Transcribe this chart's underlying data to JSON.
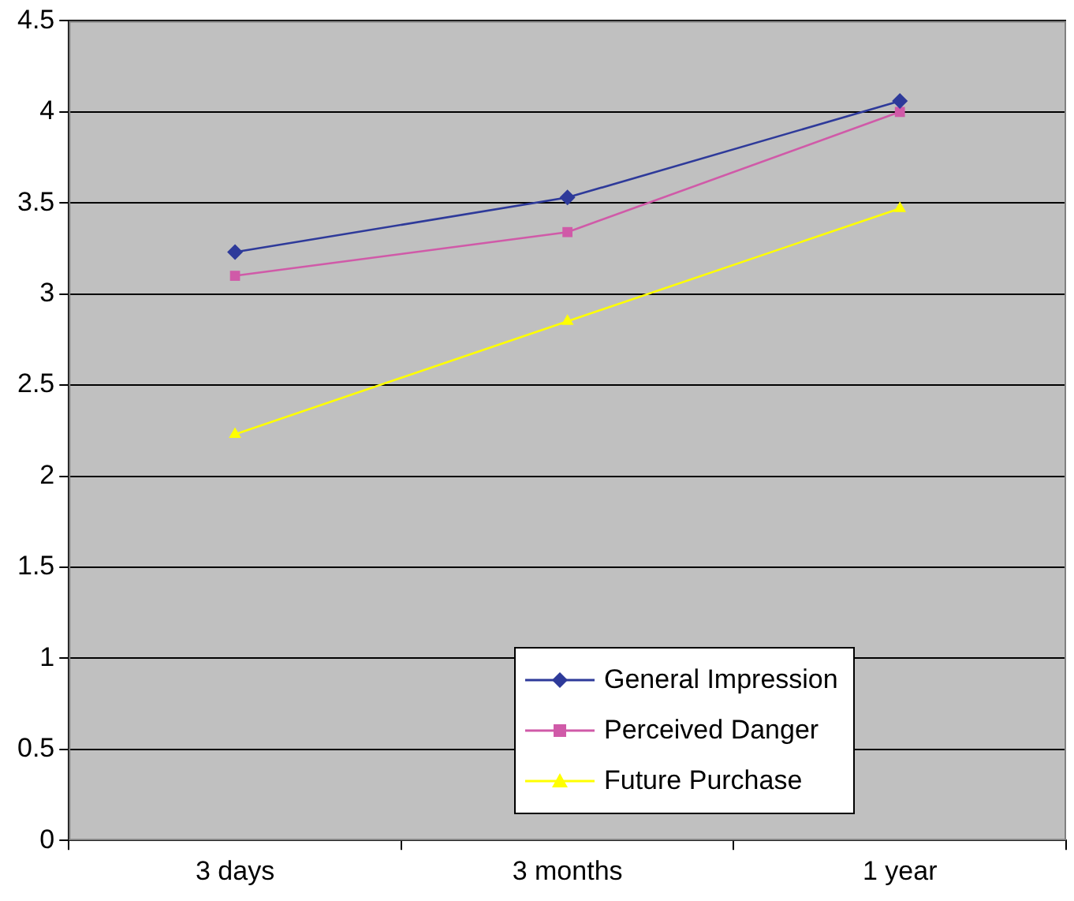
{
  "chart_data": {
    "type": "line",
    "categories": [
      "3 days",
      "3 months",
      "1 year"
    ],
    "series": [
      {
        "name": "General Impression",
        "color": "#2e3a9a",
        "marker": "diamond",
        "values": [
          3.23,
          3.53,
          4.06
        ]
      },
      {
        "name": "Perceived Danger",
        "color": "#d05aa8",
        "marker": "square",
        "values": [
          3.1,
          3.34,
          4.0
        ]
      },
      {
        "name": "Future Purchase",
        "color": "#ffff00",
        "marker": "triangle",
        "values": [
          2.23,
          2.85,
          3.47
        ]
      }
    ],
    "ylim": [
      0,
      4.5
    ],
    "yticks": [
      0,
      0.5,
      1,
      1.5,
      2,
      2.5,
      3,
      3.5,
      4,
      4.5
    ],
    "grid": "y",
    "legend": "bottom right",
    "line_style": "solid"
  }
}
